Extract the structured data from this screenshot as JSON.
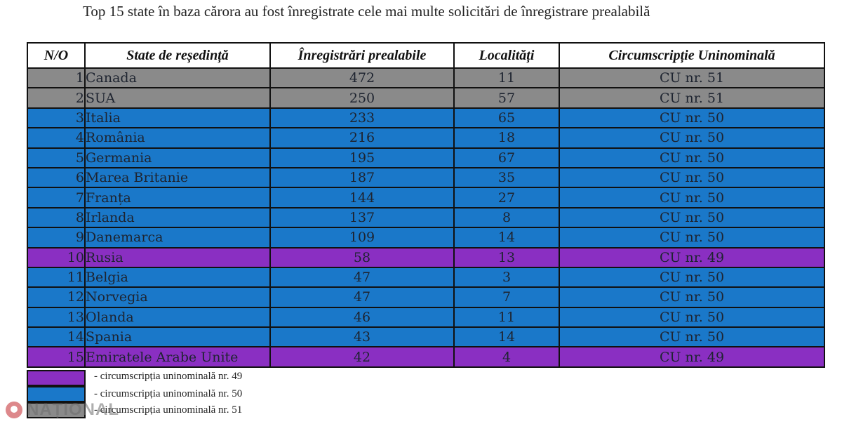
{
  "title": "Top 15 state în baza cărora au fost înregistrate cele mai multe solicitări de înregistrare prealabilă",
  "colors": {
    "gray": "#8a8a8a",
    "blue": "#1a78c9",
    "purple": "#8a2fc2"
  },
  "table": {
    "headers": [
      "N/O",
      "State de reședință",
      "Înregistrări prealabile",
      "Localități",
      "Circumscripție Uninominală"
    ],
    "rows": [
      {
        "no": "1",
        "state": "Canada",
        "registrations": "472",
        "localities": "11",
        "district": "CU nr. 51",
        "group": "gray"
      },
      {
        "no": "2",
        "state": "SUA",
        "registrations": "250",
        "localities": "57",
        "district": "CU nr. 51",
        "group": "gray"
      },
      {
        "no": "3",
        "state": "Italia",
        "registrations": "233",
        "localities": "65",
        "district": "CU nr. 50",
        "group": "blue"
      },
      {
        "no": "4",
        "state": "România",
        "registrations": "216",
        "localities": "18",
        "district": "CU nr. 50",
        "group": "blue"
      },
      {
        "no": "5",
        "state": "Germania",
        "registrations": "195",
        "localities": "67",
        "district": "CU nr. 50",
        "group": "blue"
      },
      {
        "no": "6",
        "state": "Marea Britanie",
        "registrations": "187",
        "localities": "35",
        "district": "CU nr. 50",
        "group": "blue"
      },
      {
        "no": "7",
        "state": "Franța",
        "registrations": "144",
        "localities": "27",
        "district": "CU nr. 50",
        "group": "blue"
      },
      {
        "no": "8",
        "state": "Irlanda",
        "registrations": "137",
        "localities": "8",
        "district": "CU nr. 50",
        "group": "blue"
      },
      {
        "no": "9",
        "state": "Danemarca",
        "registrations": "109",
        "localities": "14",
        "district": "CU nr. 50",
        "group": "blue"
      },
      {
        "no": "10",
        "state": "Rusia",
        "registrations": "58",
        "localities": "13",
        "district": "CU nr. 49",
        "group": "purple"
      },
      {
        "no": "11",
        "state": "Belgia",
        "registrations": "47",
        "localities": "3",
        "district": "CU nr. 50",
        "group": "blue"
      },
      {
        "no": "12",
        "state": "Norvegia",
        "registrations": "47",
        "localities": "7",
        "district": "CU nr. 50",
        "group": "blue"
      },
      {
        "no": "13",
        "state": "Olanda",
        "registrations": "46",
        "localities": "11",
        "district": "CU nr. 50",
        "group": "blue"
      },
      {
        "no": "14",
        "state": "Spania",
        "registrations": "43",
        "localities": "14",
        "district": "CU nr. 50",
        "group": "blue"
      },
      {
        "no": "15",
        "state": "Emiratele Arabe Unite",
        "registrations": "42",
        "localities": "4",
        "district": "CU nr. 49",
        "group": "purple"
      }
    ]
  },
  "legend": [
    {
      "label": "-  circumscripția uninominală nr. 49",
      "group": "purple"
    },
    {
      "label": "-  circumscripția uninominală nr. 50",
      "group": "blue"
    },
    {
      "label": "-  circumscripția uninominală nr. 51",
      "group": "gray"
    }
  ],
  "watermark": {
    "text": "NAȚIONAL",
    "icon": "logo-circle-icon"
  }
}
